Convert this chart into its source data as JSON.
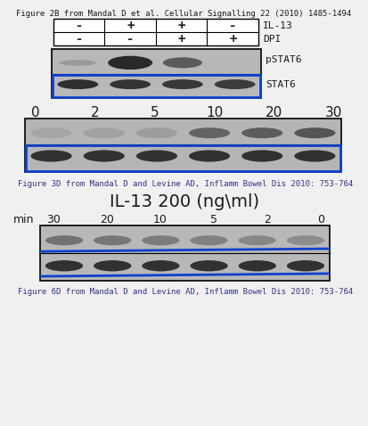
{
  "bg_color": "#f0f0f0",
  "title1": "Figure 2B from Mandal D et al. Cellular Signalling 22 (2010) 1485-1494",
  "title2": "Figure 3D from Mandal D and Levine AD, Inflamm Bowel Dis 2010: 753-764",
  "title3": "Figure 6D from Mandal D and Levine AD, Inflamm Bowel Dis 2010: 753-764",
  "caption_flipped": "IL-13 200 (ng\\ml)",
  "row_labels": [
    "IL-13",
    "DPI"
  ],
  "row1_values": [
    "-",
    "+",
    "+",
    "-"
  ],
  "row2_values": [
    "-",
    "-",
    "+",
    "+"
  ],
  "band_labels1": [
    "pSTAT6",
    "STAT6"
  ],
  "time_labels": [
    "0",
    "2",
    "5",
    "10",
    "20",
    "30"
  ],
  "min_label": "min",
  "font_color": "#1a1a1a",
  "blue_color": "#1040cc",
  "white": "#ffffff",
  "blot_light": "#cccccc",
  "blot_dark": "#333333",
  "blot_mid": "#888888"
}
